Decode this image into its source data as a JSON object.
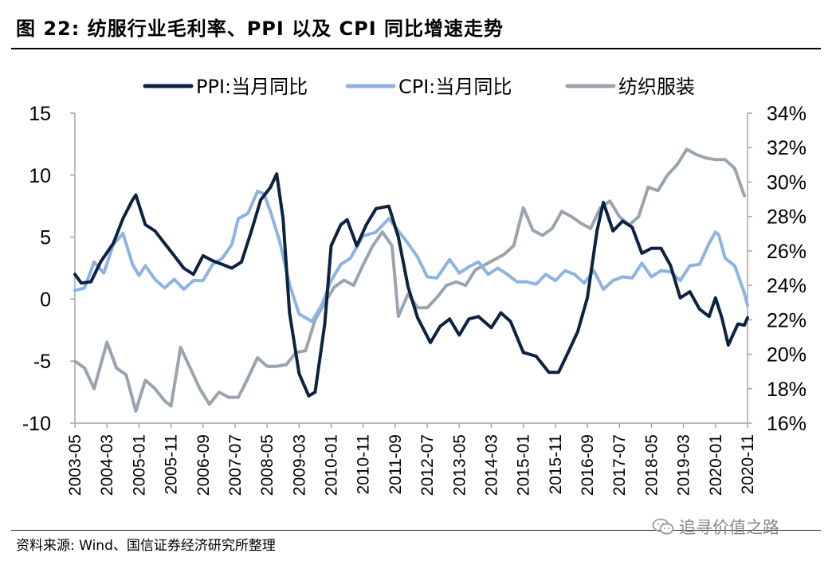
{
  "header": {
    "title": "图 22:  纺服行业毛利率、PPI 以及 CPI 同比增速走势"
  },
  "footer": {
    "source": "资料来源: Wind、国信证券经济研究所整理",
    "watermark": "追寻价值之路"
  },
  "chart_data": {
    "type": "line",
    "x_ticks": [
      "2003-05",
      "2004-03",
      "2005-01",
      "2005-11",
      "2006-09",
      "2007-07",
      "2008-05",
      "2009-03",
      "2010-01",
      "2010-11",
      "2011-09",
      "2012-07",
      "2013-05",
      "2014-03",
      "2015-01",
      "2015-11",
      "2016-09",
      "2017-07",
      "2018-05",
      "2019-03",
      "2020-01",
      "2020-11"
    ],
    "x_start": "2003-05",
    "x_end": "2020-11",
    "y_left": {
      "min": -10,
      "max": 15,
      "ticks": [
        "-10",
        "-5",
        "0",
        "5",
        "10",
        "15"
      ]
    },
    "y_right": {
      "min": 16,
      "max": 34,
      "ticks": [
        "16%",
        "18%",
        "20%",
        "22%",
        "24%",
        "26%",
        "28%",
        "30%",
        "32%",
        "34%"
      ]
    },
    "legend_position": "top",
    "grid": false,
    "series": [
      {
        "name": "PPI:当月同比",
        "axis": "left",
        "color": "#0d2240",
        "points": [
          [
            "2003-05",
            2
          ],
          [
            "2003-07",
            1.3
          ],
          [
            "2003-10",
            1.4
          ],
          [
            "2004-01",
            3
          ],
          [
            "2004-05",
            4.5
          ],
          [
            "2004-08",
            6.5
          ],
          [
            "2004-11",
            8
          ],
          [
            "2004-12",
            8.4
          ],
          [
            "2005-03",
            6
          ],
          [
            "2005-06",
            5.5
          ],
          [
            "2005-09",
            4.5
          ],
          [
            "2005-12",
            3.5
          ],
          [
            "2006-03",
            2.5
          ],
          [
            "2006-06",
            2
          ],
          [
            "2006-09",
            3.5
          ],
          [
            "2006-12",
            3.1
          ],
          [
            "2007-03",
            2.8
          ],
          [
            "2007-06",
            2.5
          ],
          [
            "2007-09",
            3
          ],
          [
            "2007-12",
            5.4
          ],
          [
            "2008-03",
            8
          ],
          [
            "2008-06",
            9
          ],
          [
            "2008-08",
            10.1
          ],
          [
            "2008-10",
            6.5
          ],
          [
            "2008-12",
            -1.1
          ],
          [
            "2009-03",
            -6
          ],
          [
            "2009-06",
            -7.8
          ],
          [
            "2009-08",
            -7.5
          ],
          [
            "2009-11",
            -2
          ],
          [
            "2010-01",
            4.3
          ],
          [
            "2010-04",
            6
          ],
          [
            "2010-06",
            6.4
          ],
          [
            "2010-09",
            4.3
          ],
          [
            "2010-12",
            6
          ],
          [
            "2011-03",
            7.3
          ],
          [
            "2011-07",
            7.5
          ],
          [
            "2011-10",
            5
          ],
          [
            "2012-01",
            1
          ],
          [
            "2012-04",
            -1.5
          ],
          [
            "2012-08",
            -3.5
          ],
          [
            "2012-11",
            -2.2
          ],
          [
            "2013-02",
            -1.6
          ],
          [
            "2013-05",
            -2.9
          ],
          [
            "2013-08",
            -1.6
          ],
          [
            "2013-11",
            -1.4
          ],
          [
            "2014-03",
            -2.3
          ],
          [
            "2014-06",
            -1.1
          ],
          [
            "2014-09",
            -1.8
          ],
          [
            "2015-01",
            -4.3
          ],
          [
            "2015-05",
            -4.6
          ],
          [
            "2015-09",
            -5.9
          ],
          [
            "2015-12",
            -5.9
          ],
          [
            "2016-03",
            -4.3
          ],
          [
            "2016-06",
            -2.6
          ],
          [
            "2016-09",
            0.1
          ],
          [
            "2016-12",
            5.5
          ],
          [
            "2017-02",
            7.8
          ],
          [
            "2017-05",
            5.5
          ],
          [
            "2017-08",
            6.3
          ],
          [
            "2017-11",
            5.8
          ],
          [
            "2018-02",
            3.7
          ],
          [
            "2018-05",
            4.1
          ],
          [
            "2018-08",
            4.1
          ],
          [
            "2018-11",
            2.7
          ],
          [
            "2019-02",
            0.1
          ],
          [
            "2019-05",
            0.6
          ],
          [
            "2019-08",
            -0.8
          ],
          [
            "2019-11",
            -1.4
          ],
          [
            "2020-01",
            0.1
          ],
          [
            "2020-03",
            -1.5
          ],
          [
            "2020-05",
            -3.7
          ],
          [
            "2020-08",
            -2
          ],
          [
            "2020-10",
            -2.1
          ],
          [
            "2020-11",
            -1.5
          ]
        ]
      },
      {
        "name": "CPI:当月同比",
        "axis": "left",
        "color": "#8db3e2",
        "points": [
          [
            "2003-05",
            0.7
          ],
          [
            "2003-08",
            0.9
          ],
          [
            "2003-11",
            3
          ],
          [
            "2004-02",
            2.1
          ],
          [
            "2004-05",
            4.4
          ],
          [
            "2004-08",
            5.3
          ],
          [
            "2004-11",
            2.8
          ],
          [
            "2005-01",
            1.9
          ],
          [
            "2005-03",
            2.7
          ],
          [
            "2005-06",
            1.6
          ],
          [
            "2005-09",
            0.9
          ],
          [
            "2005-12",
            1.6
          ],
          [
            "2006-03",
            0.8
          ],
          [
            "2006-06",
            1.5
          ],
          [
            "2006-09",
            1.5
          ],
          [
            "2006-12",
            2.8
          ],
          [
            "2007-03",
            3.3
          ],
          [
            "2007-06",
            4.4
          ],
          [
            "2007-08",
            6.5
          ],
          [
            "2007-11",
            6.9
          ],
          [
            "2008-02",
            8.7
          ],
          [
            "2008-04",
            8.5
          ],
          [
            "2008-06",
            7.1
          ],
          [
            "2008-09",
            4.6
          ],
          [
            "2008-12",
            1.2
          ],
          [
            "2009-03",
            -1.2
          ],
          [
            "2009-07",
            -1.8
          ],
          [
            "2009-10",
            -0.5
          ],
          [
            "2010-01",
            1.5
          ],
          [
            "2010-04",
            2.8
          ],
          [
            "2010-07",
            3.3
          ],
          [
            "2010-11",
            5.1
          ],
          [
            "2011-03",
            5.4
          ],
          [
            "2011-07",
            6.5
          ],
          [
            "2011-10",
            5.5
          ],
          [
            "2012-01",
            4.5
          ],
          [
            "2012-04",
            3.4
          ],
          [
            "2012-07",
            1.8
          ],
          [
            "2012-10",
            1.7
          ],
          [
            "2013-02",
            3.2
          ],
          [
            "2013-05",
            2.1
          ],
          [
            "2013-08",
            2.6
          ],
          [
            "2013-11",
            3
          ],
          [
            "2014-02",
            2
          ],
          [
            "2014-05",
            2.5
          ],
          [
            "2014-08",
            2
          ],
          [
            "2014-11",
            1.4
          ],
          [
            "2015-02",
            1.4
          ],
          [
            "2015-05",
            1.2
          ],
          [
            "2015-08",
            2
          ],
          [
            "2015-11",
            1.5
          ],
          [
            "2016-02",
            2.3
          ],
          [
            "2016-05",
            2
          ],
          [
            "2016-08",
            1.3
          ],
          [
            "2016-11",
            2.3
          ],
          [
            "2017-02",
            0.8
          ],
          [
            "2017-05",
            1.5
          ],
          [
            "2017-08",
            1.8
          ],
          [
            "2017-11",
            1.7
          ],
          [
            "2018-02",
            2.9
          ],
          [
            "2018-05",
            1.8
          ],
          [
            "2018-08",
            2.3
          ],
          [
            "2018-11",
            2.2
          ],
          [
            "2019-02",
            1.5
          ],
          [
            "2019-05",
            2.7
          ],
          [
            "2019-08",
            2.8
          ],
          [
            "2019-11",
            4.5
          ],
          [
            "2020-01",
            5.4
          ],
          [
            "2020-02",
            5.2
          ],
          [
            "2020-04",
            3.3
          ],
          [
            "2020-07",
            2.7
          ],
          [
            "2020-10",
            0.5
          ],
          [
            "2020-11",
            -0.5
          ]
        ]
      },
      {
        "name": "纺织服装",
        "axis": "right",
        "color": "#9aa4af",
        "points": [
          [
            "2003-05",
            19.6
          ],
          [
            "2003-08",
            19.2
          ],
          [
            "2003-11",
            18
          ],
          [
            "2004-03",
            20.7
          ],
          [
            "2004-06",
            19.2
          ],
          [
            "2004-09",
            18.8
          ],
          [
            "2004-12",
            16.7
          ],
          [
            "2005-03",
            18.5
          ],
          [
            "2005-06",
            18
          ],
          [
            "2005-09",
            17.3
          ],
          [
            "2005-11",
            17
          ],
          [
            "2006-02",
            20.4
          ],
          [
            "2006-05",
            19.2
          ],
          [
            "2006-08",
            18
          ],
          [
            "2006-11",
            17.1
          ],
          [
            "2007-02",
            17.8
          ],
          [
            "2007-05",
            17.5
          ],
          [
            "2007-08",
            17.5
          ],
          [
            "2007-11",
            18.6
          ],
          [
            "2008-02",
            19.8
          ],
          [
            "2008-05",
            19.3
          ],
          [
            "2008-08",
            19.3
          ],
          [
            "2008-11",
            19.4
          ],
          [
            "2009-02",
            20.1
          ],
          [
            "2009-05",
            20.2
          ],
          [
            "2009-08",
            22
          ],
          [
            "2009-11",
            23
          ],
          [
            "2010-02",
            23.9
          ],
          [
            "2010-05",
            24.3
          ],
          [
            "2010-08",
            24
          ],
          [
            "2010-11",
            25.2
          ],
          [
            "2011-02",
            26.3
          ],
          [
            "2011-05",
            27.1
          ],
          [
            "2011-08",
            26.3
          ],
          [
            "2011-10",
            22.2
          ],
          [
            "2012-01",
            23.5
          ],
          [
            "2012-04",
            22.7
          ],
          [
            "2012-07",
            22.7
          ],
          [
            "2012-10",
            23.3
          ],
          [
            "2013-01",
            24
          ],
          [
            "2013-04",
            24.2
          ],
          [
            "2013-07",
            24
          ],
          [
            "2013-10",
            24.9
          ],
          [
            "2014-01",
            25.2
          ],
          [
            "2014-04",
            25.5
          ],
          [
            "2014-07",
            25.8
          ],
          [
            "2014-10",
            26.3
          ],
          [
            "2015-01",
            28.5
          ],
          [
            "2015-04",
            27.2
          ],
          [
            "2015-07",
            26.9
          ],
          [
            "2015-10",
            27.3
          ],
          [
            "2016-01",
            28.3
          ],
          [
            "2016-04",
            28
          ],
          [
            "2016-07",
            27.6
          ],
          [
            "2016-10",
            27.3
          ],
          [
            "2017-01",
            28.5
          ],
          [
            "2017-04",
            28.9
          ],
          [
            "2017-07",
            28
          ],
          [
            "2017-10",
            27.5
          ],
          [
            "2018-01",
            28
          ],
          [
            "2018-04",
            29.7
          ],
          [
            "2018-07",
            29.5
          ],
          [
            "2018-10",
            30.4
          ],
          [
            "2019-01",
            31
          ],
          [
            "2019-04",
            31.9
          ],
          [
            "2019-07",
            31.6
          ],
          [
            "2019-10",
            31.4
          ],
          [
            "2020-01",
            31.3
          ],
          [
            "2020-04",
            31.3
          ],
          [
            "2020-07",
            30.8
          ],
          [
            "2020-10",
            29.2
          ]
        ]
      }
    ]
  }
}
